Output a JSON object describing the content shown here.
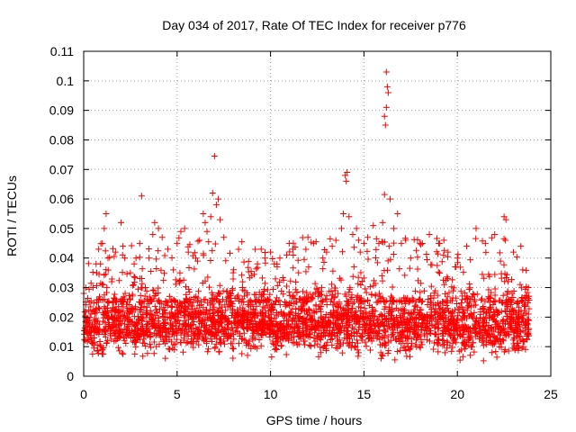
{
  "chart_data": {
    "type": "scatter",
    "title": "Day 034 of 2017, Rate Of TEC Index for receiver p776",
    "xlabel": "GPS time / hours",
    "ylabel": "ROTI / TECUs",
    "xlim": [
      0,
      25
    ],
    "ylim": [
      0,
      0.11
    ],
    "xticks": [
      0,
      5,
      10,
      15,
      20,
      25
    ],
    "xtick_labels": [
      "0",
      "5",
      "10",
      "15",
      "20",
      "25"
    ],
    "yticks": [
      0,
      0.01,
      0.02,
      0.03,
      0.04,
      0.05,
      0.06,
      0.07,
      0.08,
      0.09,
      0.1,
      0.11
    ],
    "ytick_labels": [
      "0",
      "0.01",
      "0.02",
      "0.03",
      "0.04",
      "0.05",
      "0.06",
      "0.07",
      "0.08",
      "0.09",
      "0.1",
      "0.11"
    ],
    "grid": true,
    "marker": "+",
    "series": [
      {
        "name": "ROTI",
        "color": "#ff0000",
        "points": [
          [
            0.1,
            0.012
          ],
          [
            0.2,
            0.018
          ],
          [
            0.3,
            0.025
          ],
          [
            0.4,
            0.015
          ],
          [
            0.5,
            0.03
          ],
          [
            0.6,
            0.022
          ],
          [
            0.7,
            0.035
          ],
          [
            0.8,
            0.043
          ],
          [
            0.9,
            0.038
          ],
          [
            1.0,
            0.045
          ],
          [
            1.1,
            0.05
          ],
          [
            1.2,
            0.055
          ],
          [
            1.3,
            0.04
          ],
          [
            1.5,
            0.032
          ],
          [
            1.7,
            0.042
          ],
          [
            2.0,
            0.052
          ],
          [
            2.1,
            0.044
          ],
          [
            2.2,
            0.04
          ],
          [
            2.5,
            0.035
          ],
          [
            2.7,
            0.038
          ],
          [
            2.8,
            0.04
          ],
          [
            3.0,
            0.045
          ],
          [
            3.1,
            0.061
          ],
          [
            3.3,
            0.03
          ],
          [
            3.5,
            0.04
          ],
          [
            3.7,
            0.048
          ],
          [
            3.8,
            0.052
          ],
          [
            4.0,
            0.05
          ],
          [
            4.2,
            0.047
          ],
          [
            4.5,
            0.043
          ],
          [
            4.8,
            0.036
          ],
          [
            5.0,
            0.045
          ],
          [
            5.2,
            0.049
          ],
          [
            5.4,
            0.05
          ],
          [
            5.6,
            0.042
          ],
          [
            6.0,
            0.04
          ],
          [
            6.2,
            0.046
          ],
          [
            6.4,
            0.055
          ],
          [
            6.5,
            0.052
          ],
          [
            6.6,
            0.049
          ],
          [
            6.8,
            0.054
          ],
          [
            6.9,
            0.062
          ],
          [
            7.0,
            0.0745
          ],
          [
            7.1,
            0.058
          ],
          [
            7.2,
            0.06
          ],
          [
            7.3,
            0.053
          ],
          [
            7.5,
            0.047
          ],
          [
            8.0,
            0.035
          ],
          [
            8.5,
            0.03
          ],
          [
            9.0,
            0.034
          ],
          [
            9.3,
            0.038
          ],
          [
            9.5,
            0.043
          ],
          [
            9.7,
            0.04
          ],
          [
            10.0,
            0.042
          ],
          [
            10.2,
            0.038
          ],
          [
            10.5,
            0.04
          ],
          [
            11.0,
            0.045
          ],
          [
            11.2,
            0.043
          ],
          [
            11.5,
            0.035
          ],
          [
            12.0,
            0.047
          ],
          [
            12.3,
            0.045
          ],
          [
            12.8,
            0.04
          ],
          [
            13.0,
            0.042
          ],
          [
            13.3,
            0.044
          ],
          [
            13.5,
            0.046
          ],
          [
            13.8,
            0.05
          ],
          [
            13.9,
            0.055
          ],
          [
            14.0,
            0.068
          ],
          [
            14.05,
            0.066
          ],
          [
            14.1,
            0.069
          ],
          [
            14.2,
            0.054
          ],
          [
            14.4,
            0.048
          ],
          [
            14.6,
            0.05
          ],
          [
            14.8,
            0.042
          ],
          [
            15.0,
            0.045
          ],
          [
            15.2,
            0.047
          ],
          [
            15.5,
            0.051
          ],
          [
            15.8,
            0.045
          ],
          [
            16.0,
            0.052
          ],
          [
            16.1,
            0.0615
          ],
          [
            16.15,
            0.085
          ],
          [
            16.2,
            0.103
          ],
          [
            16.25,
            0.098
          ],
          [
            16.3,
            0.096
          ],
          [
            16.2,
            0.091
          ],
          [
            16.1,
            0.088
          ],
          [
            16.4,
            0.06
          ],
          [
            16.6,
            0.05
          ],
          [
            16.8,
            0.055
          ],
          [
            17.0,
            0.045
          ],
          [
            17.5,
            0.04
          ],
          [
            18.0,
            0.045
          ],
          [
            18.5,
            0.048
          ],
          [
            19.0,
            0.045
          ],
          [
            19.5,
            0.042
          ],
          [
            20.0,
            0.04
          ],
          [
            20.5,
            0.044
          ],
          [
            21.0,
            0.05
          ],
          [
            21.5,
            0.045
          ],
          [
            22.0,
            0.048
          ],
          [
            22.5,
            0.054
          ],
          [
            22.6,
            0.053
          ],
          [
            23.0,
            0.042
          ],
          [
            23.5,
            0.036
          ],
          [
            23.8,
            0.03
          ]
        ],
        "density_band": {
          "x_range": [
            0,
            23.85
          ],
          "y_min": 0.004,
          "y_max": 0.03,
          "y_center": 0.017
        }
      }
    ]
  }
}
